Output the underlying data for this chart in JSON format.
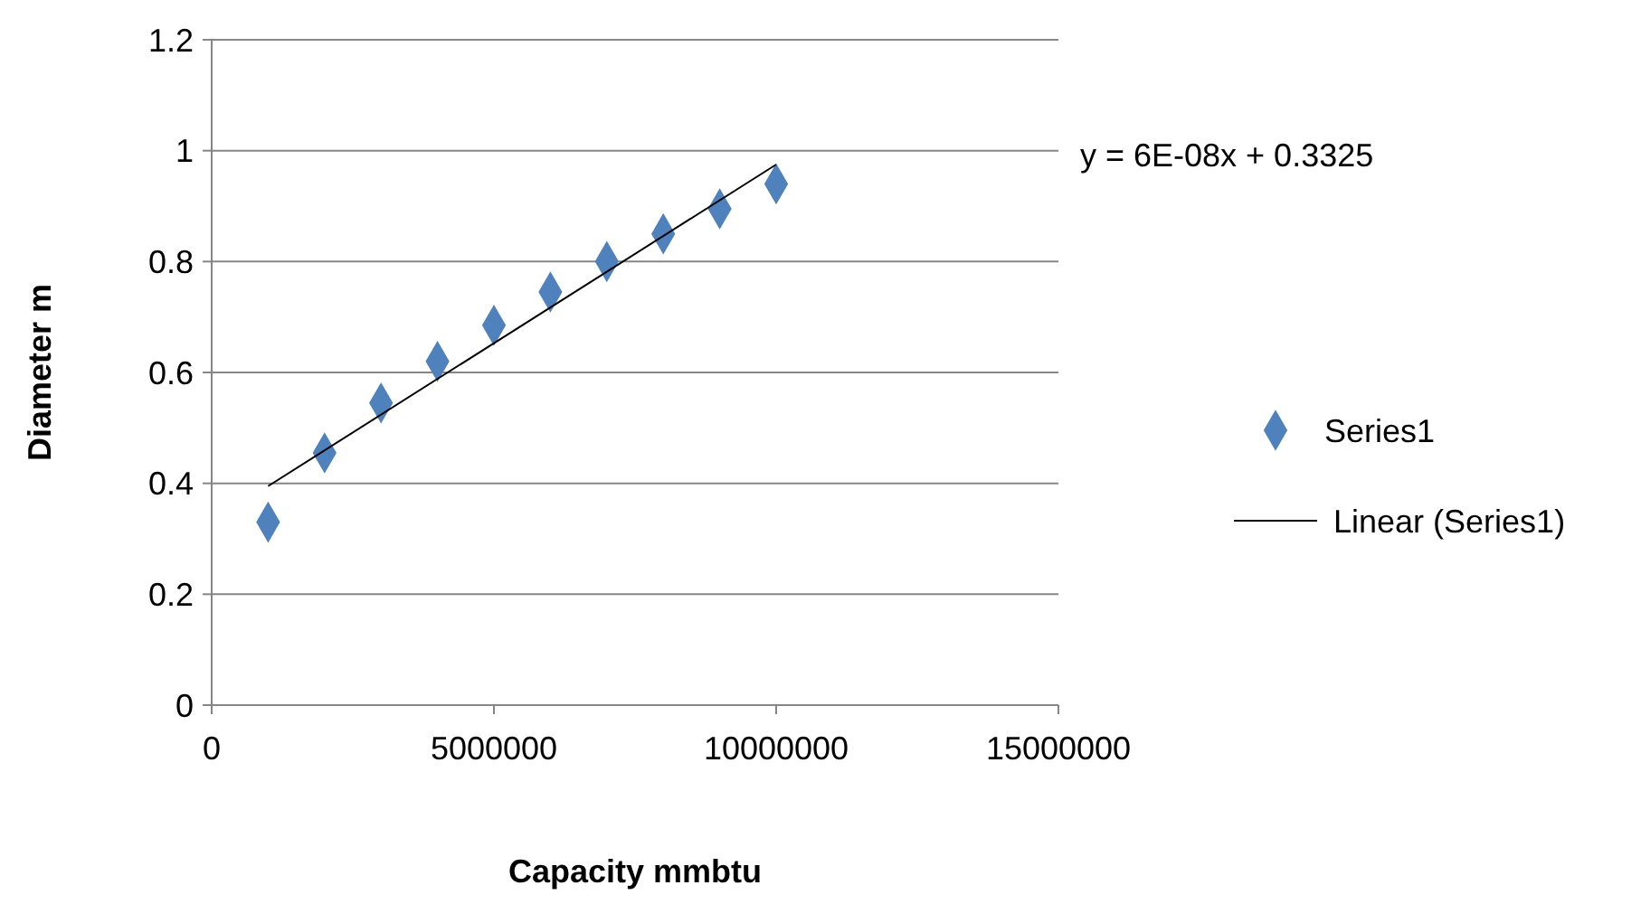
{
  "chart_data": {
    "type": "scatter",
    "xlabel": "Capacity mmbtu",
    "ylabel": "Diameter m",
    "x": [
      1000000,
      2000000,
      3000000,
      4000000,
      5000000,
      6000000,
      7000000,
      8000000,
      9000000,
      10000000
    ],
    "series": [
      {
        "name": "Series1",
        "color": "#4f81bd",
        "marker": "diamond",
        "values": [
          0.33,
          0.455,
          0.545,
          0.62,
          0.685,
          0.745,
          0.8,
          0.85,
          0.895,
          0.94
        ]
      },
      {
        "name": "Linear (Series1)",
        "type": "line",
        "color": "#000000",
        "marker": "none",
        "x": [
          1000000,
          10000000
        ],
        "values": [
          0.395,
          0.975
        ]
      }
    ],
    "xlim": [
      0,
      15000000
    ],
    "xticks": [
      0,
      5000000,
      10000000,
      15000000
    ],
    "ylim": [
      0,
      1.2
    ],
    "yticks": [
      0,
      {
        "value": 0.2,
        "label": "0.2"
      },
      {
        "value": 0.4,
        "label": "0.4"
      },
      {
        "value": 0.6,
        "label": "0.6"
      },
      {
        "value": 0.8,
        "label": "0.8"
      },
      1,
      {
        "value": 1.2,
        "label": "1.2"
      }
    ],
    "grid": "y",
    "legend": "right",
    "annotations": [
      "y = 6E-08x + 0.3325"
    ]
  }
}
